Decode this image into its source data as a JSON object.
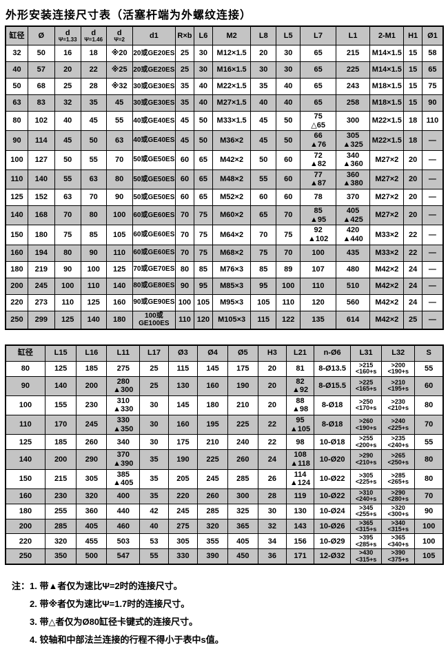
{
  "title": "外形安装连接尺寸表（活塞杆端为外螺纹连接）",
  "table1": {
    "headers": [
      "缸径",
      "Ø",
      "d\nΨ=1.33",
      "d\nΨ=1.46",
      "d\nΨ=2",
      "d1",
      "R×b",
      "L6",
      "M2",
      "L8",
      "L5",
      "L7",
      "L1",
      "2-M1",
      "H1",
      "Ø1"
    ],
    "rows": [
      [
        "32",
        "50",
        "16",
        "18",
        "※20",
        "20或GE20ES",
        "25",
        "30",
        "M12×1.5",
        "20",
        "30",
        "65",
        "215",
        "M14×1.5",
        "15",
        "58"
      ],
      [
        "40",
        "57",
        "20",
        "22",
        "※25",
        "20或GE20ES",
        "25",
        "30",
        "M16×1.5",
        "30",
        "30",
        "65",
        "225",
        "M14×1.5",
        "15",
        "65"
      ],
      [
        "50",
        "68",
        "25",
        "28",
        "※32",
        "30或GE30ES",
        "35",
        "40",
        "M22×1.5",
        "35",
        "40",
        "65",
        "243",
        "M18×1.5",
        "15",
        "75"
      ],
      [
        "63",
        "83",
        "32",
        "35",
        "45",
        "30或GE30ES",
        "35",
        "40",
        "M27×1.5",
        "40",
        "40",
        "65",
        "258",
        "M18×1.5",
        "15",
        "90"
      ],
      [
        "80",
        "102",
        "40",
        "45",
        "55",
        "40或GE40ES",
        "45",
        "50",
        "M33×1.5",
        "45",
        "50",
        "75\n△65",
        "300",
        "M22×1.5",
        "18",
        "110"
      ],
      [
        "90",
        "114",
        "45",
        "50",
        "63",
        "40或GE40ES",
        "45",
        "50",
        "M36×2",
        "45",
        "50",
        "66\n▲76",
        "305\n▲325",
        "M22×1.5",
        "18",
        "—"
      ],
      [
        "100",
        "127",
        "50",
        "55",
        "70",
        "50或GE50ES",
        "60",
        "65",
        "M42×2",
        "50",
        "60",
        "72\n▲82",
        "340\n▲360",
        "M27×2",
        "20",
        "—"
      ],
      [
        "110",
        "140",
        "55",
        "63",
        "80",
        "50或GE50ES",
        "60",
        "65",
        "M48×2",
        "55",
        "60",
        "77\n▲87",
        "360\n▲380",
        "M27×2",
        "20",
        "—"
      ],
      [
        "125",
        "152",
        "63",
        "70",
        "90",
        "50或GE50ES",
        "60",
        "65",
        "M52×2",
        "60",
        "60",
        "78",
        "370",
        "M27×2",
        "20",
        "—"
      ],
      [
        "140",
        "168",
        "70",
        "80",
        "100",
        "60或GE60ES",
        "70",
        "75",
        "M60×2",
        "65",
        "70",
        "85\n▲95",
        "405\n▲425",
        "M27×2",
        "20",
        "—"
      ],
      [
        "150",
        "180",
        "75",
        "85",
        "105",
        "60或GE60ES",
        "70",
        "75",
        "M64×2",
        "70",
        "75",
        "92\n▲102",
        "420\n▲440",
        "M33×2",
        "22",
        "—"
      ],
      [
        "160",
        "194",
        "80",
        "90",
        "110",
        "60或GE60ES",
        "70",
        "75",
        "M68×2",
        "75",
        "70",
        "100",
        "435",
        "M33×2",
        "22",
        "—"
      ],
      [
        "180",
        "219",
        "90",
        "100",
        "125",
        "70或GE70ES",
        "80",
        "85",
        "M76×3",
        "85",
        "89",
        "107",
        "480",
        "M42×2",
        "24",
        "—"
      ],
      [
        "200",
        "245",
        "100",
        "110",
        "140",
        "80或GE80ES",
        "90",
        "95",
        "M85×3",
        "95",
        "100",
        "110",
        "510",
        "M42×2",
        "24",
        "—"
      ],
      [
        "220",
        "273",
        "110",
        "125",
        "160",
        "90或GE90ES",
        "100",
        "105",
        "M95×3",
        "105",
        "110",
        "120",
        "560",
        "M42×2",
        "24",
        "—"
      ],
      [
        "250",
        "299",
        "125",
        "140",
        "180",
        "100或GE100ES",
        "110",
        "120",
        "M105×3",
        "115",
        "122",
        "135",
        "614",
        "M42×2",
        "25",
        "—"
      ]
    ]
  },
  "table2": {
    "headers": [
      "缸径",
      "L15",
      "L16",
      "L11",
      "L17",
      "Ø3",
      "Ø4",
      "Ø5",
      "H3",
      "L21",
      "n-Ø6",
      "L31",
      "L32",
      "S"
    ],
    "rows": [
      [
        "80",
        "125",
        "185",
        "275",
        "25",
        "115",
        "145",
        "175",
        "20",
        "81",
        "8-Ø13.5",
        ">215\n<160+s",
        ">200\n<190+s",
        "55"
      ],
      [
        "90",
        "140",
        "200",
        "280\n▲300",
        "25",
        "130",
        "160",
        "190",
        "20",
        "82\n▲92",
        "8-Ø15.5",
        ">225\n<165+s",
        ">210\n<195+s",
        "60"
      ],
      [
        "100",
        "155",
        "230",
        "310\n▲330",
        "30",
        "145",
        "180",
        "210",
        "20",
        "88\n▲98",
        "8-Ø18",
        ">250\n<170+s",
        ">230\n<210+s",
        "80"
      ],
      [
        "110",
        "170",
        "245",
        "330\n▲350",
        "30",
        "160",
        "195",
        "225",
        "22",
        "95\n▲105",
        "8-Ø18",
        ">260\n<190+s",
        ">240\n<225+s",
        "70"
      ],
      [
        "125",
        "185",
        "260",
        "340",
        "30",
        "175",
        "210",
        "240",
        "22",
        "98",
        "10-Ø18",
        ">255\n<200+s",
        ">235\n<240+s",
        "55"
      ],
      [
        "140",
        "200",
        "290",
        "370\n▲390",
        "35",
        "190",
        "225",
        "260",
        "24",
        "108\n▲118",
        "10-Ø20",
        ">290\n<210+s",
        ">265\n<250+s",
        "80"
      ],
      [
        "150",
        "215",
        "305",
        "385\n▲405",
        "35",
        "205",
        "245",
        "285",
        "26",
        "114\n▲124",
        "10-Ø22",
        ">305\n<225+s",
        ">285\n<265+s",
        "80"
      ],
      [
        "160",
        "230",
        "320",
        "400",
        "35",
        "220",
        "260",
        "300",
        "28",
        "119",
        "10-Ø22",
        ">310\n<240+s",
        ">290\n<280+s",
        "70"
      ],
      [
        "180",
        "255",
        "360",
        "440",
        "42",
        "245",
        "285",
        "325",
        "30",
        "130",
        "10-Ø24",
        ">345\n<255+s",
        ">320\n<300+s",
        "90"
      ],
      [
        "200",
        "285",
        "405",
        "460",
        "40",
        "275",
        "320",
        "365",
        "32",
        "143",
        "10-Ø26",
        ">365\n<315+s",
        ">340\n<315+s",
        "100"
      ],
      [
        "220",
        "320",
        "455",
        "503",
        "53",
        "305",
        "355",
        "405",
        "34",
        "156",
        "10-Ø29",
        ">395\n<285+s",
        ">365\n<340+s",
        "100"
      ],
      [
        "250",
        "350",
        "500",
        "547",
        "55",
        "330",
        "390",
        "450",
        "36",
        "171",
        "12-Ø32",
        ">430\n<315+s",
        ">390\n<375+s",
        "105"
      ]
    ]
  },
  "notes": {
    "prefix": "注：",
    "items": [
      "1. 带▲者仅为速比Ψ=2时的连接尺寸。",
      "2. 带※者仅为速比Ψ=1.7时的连接尺寸。",
      "3. 带△者仅为Ø80缸径卡键式的连接尺寸。",
      "4. 铰轴和中部法兰连接的行程不得小于表中s值。"
    ]
  },
  "colors": {
    "band": "#c4c4c4",
    "border": "#000000",
    "background": "#ffffff",
    "text": "#000000"
  }
}
